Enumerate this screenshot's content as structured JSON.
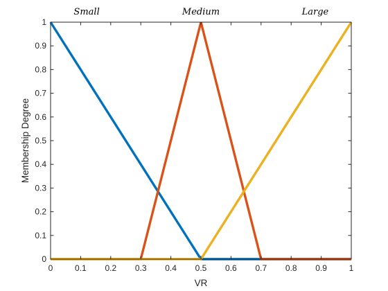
{
  "chart_data": {
    "type": "line",
    "title": "",
    "xlabel": "VR",
    "ylabel": "Membership Degree",
    "xlim": [
      0,
      1
    ],
    "ylim": [
      0,
      1
    ],
    "xticks": [
      "0",
      "0.1",
      "0.2",
      "0.3",
      "0.4",
      "0.5",
      "0.6",
      "0.7",
      "0.8",
      "0.9",
      "1"
    ],
    "yticks": [
      "0",
      "0.1",
      "0.2",
      "0.3",
      "0.4",
      "0.5",
      "0.6",
      "0.7",
      "0.8",
      "0.9",
      "1"
    ],
    "grid": false,
    "series": [
      {
        "name": "Small",
        "color": "#0072BD",
        "x": [
          0,
          0.5,
          0.7,
          1
        ],
        "y": [
          1,
          0,
          0,
          0
        ]
      },
      {
        "name": "Medium",
        "color": "#D95319",
        "x": [
          0,
          0.3,
          0.5,
          0.7,
          1
        ],
        "y": [
          0,
          0,
          1,
          0,
          0
        ]
      },
      {
        "name": "Large",
        "color": "#EDB120",
        "x": [
          0,
          0.5,
          1
        ],
        "y": [
          0,
          0,
          1
        ]
      }
    ],
    "annotations": [
      {
        "text": "Small",
        "x": 0.12
      },
      {
        "text": "Medium",
        "x": 0.5
      },
      {
        "text": "Large",
        "x": 0.88
      }
    ]
  }
}
